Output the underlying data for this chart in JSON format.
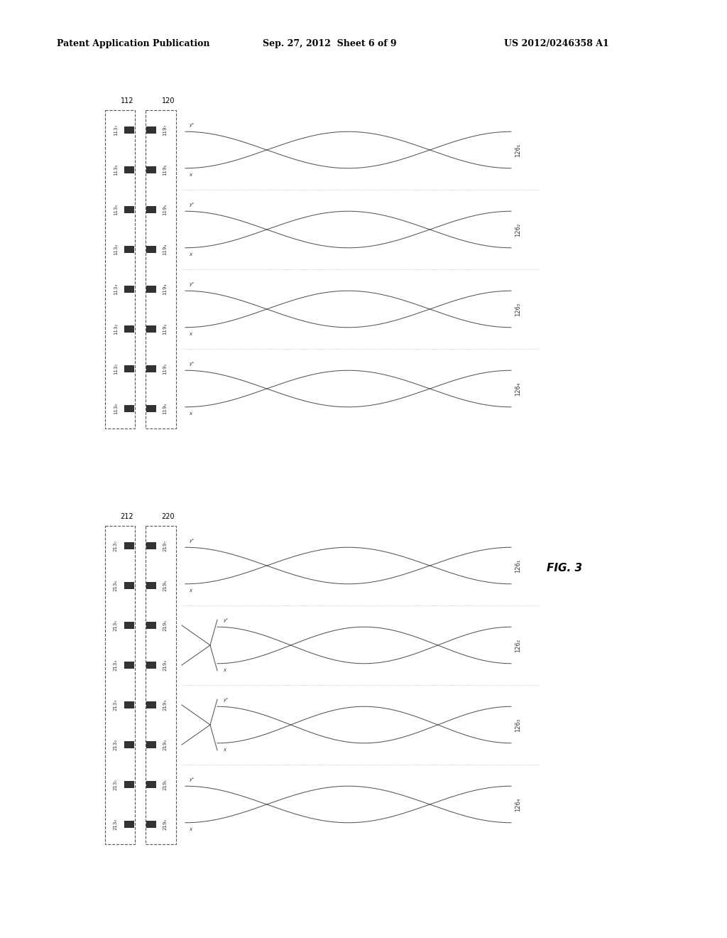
{
  "title_left": "Patent Application Publication",
  "title_mid": "Sep. 27, 2012  Sheet 6 of 9",
  "title_right": "US 2012/0246358 A1",
  "fig_label": "FIG. 3",
  "background": "#ffffff",
  "diagram1": {
    "box1_label": "112",
    "box2_label": "120",
    "left_pins": [
      "113₇",
      "113₆",
      "113₅",
      "113₄",
      "113₃",
      "113₂",
      "113₁",
      "113₀"
    ],
    "right_pins": [
      "119₇",
      "119₆",
      "119₅",
      "119₄",
      "119₃",
      "119₂",
      "119₁",
      "119₀"
    ],
    "outputs": [
      "126₄",
      "126₃",
      "126₂",
      "126₁"
    ],
    "cross_pairs": []
  },
  "diagram2": {
    "box1_label": "212",
    "box2_label": "220",
    "left_pins": [
      "213₇",
      "213₆",
      "213₅",
      "213₄",
      "213₃",
      "213₂",
      "213₁",
      "213₀"
    ],
    "right_pins": [
      "219₇",
      "219₆",
      "219₅",
      "219₄",
      "219₃",
      "219₂",
      "219₁",
      "219₀"
    ],
    "outputs": [
      "126₄",
      "126₃",
      "126₂",
      "126₁"
    ],
    "cross_pairs": [
      1,
      2
    ]
  }
}
